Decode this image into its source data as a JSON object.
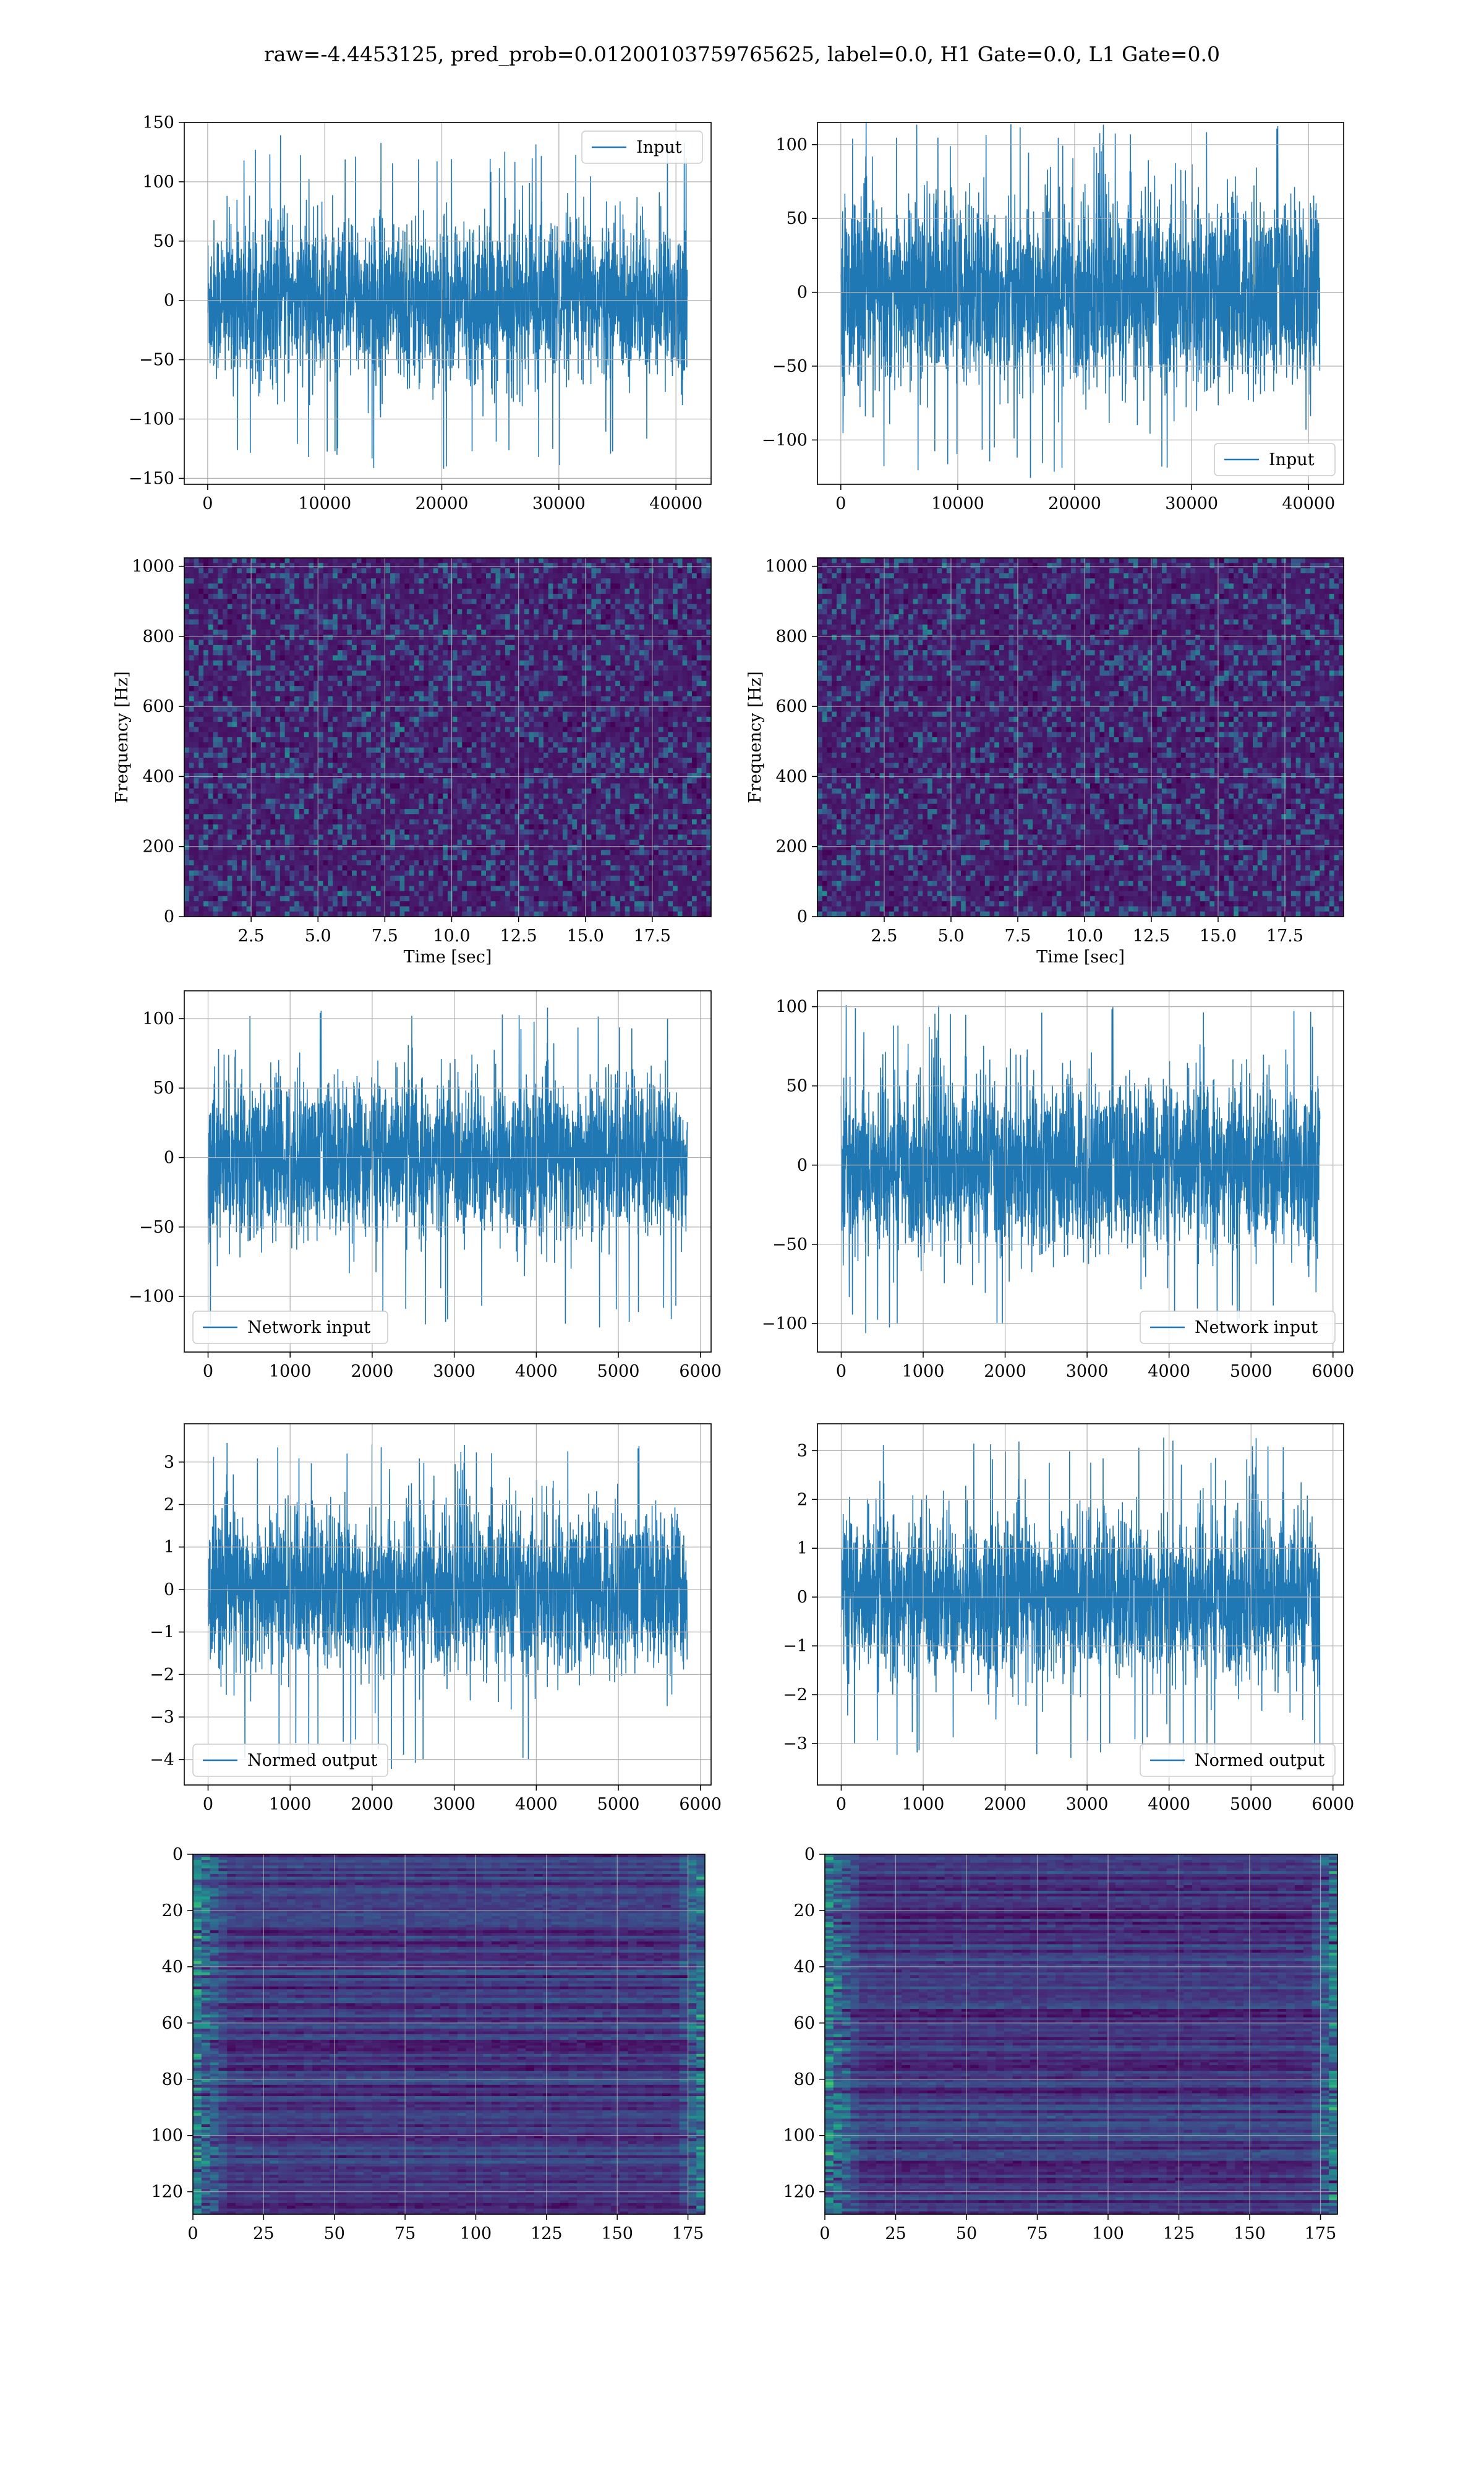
{
  "suptitle": "raw=-4.4453125, pred_prob=0.01200103759765625, label=0.0, H1 Gate=0.0, L1 Gate=0.0",
  "colors": {
    "line": "#1f77b4",
    "grid": "#b0b0b0",
    "viridis": [
      "#440154",
      "#482878",
      "#3e4989",
      "#31688e",
      "#26828e",
      "#1f9e89",
      "#35b779",
      "#6ece58",
      "#b5de2b",
      "#fde725"
    ]
  },
  "chart_data": [
    {
      "id": "h1-input",
      "type": "line",
      "series": [
        {
          "name": "Input",
          "n_samples": 40960,
          "envelope": [
            -100,
            100
          ],
          "extremes": [
            -142,
            140
          ]
        }
      ],
      "xlim": [
        -2000,
        43000
      ],
      "ylim": [
        -155,
        150
      ],
      "xticks": [
        0,
        10000,
        20000,
        30000,
        40000
      ],
      "yticks": [
        -150,
        -100,
        -50,
        0,
        50,
        100,
        150
      ],
      "legend": "upper right",
      "grid": true,
      "xlabel": "",
      "ylabel": ""
    },
    {
      "id": "l1-input",
      "type": "line",
      "series": [
        {
          "name": "Input",
          "n_samples": 40960,
          "envelope": [
            -95,
            95
          ],
          "extremes": [
            -128,
            115
          ]
        }
      ],
      "xlim": [
        -2000,
        43000
      ],
      "ylim": [
        -130,
        115
      ],
      "xticks": [
        0,
        10000,
        20000,
        30000,
        40000
      ],
      "yticks": [
        -100,
        -50,
        0,
        50,
        100
      ],
      "legend": "lower right",
      "grid": true,
      "xlabel": "",
      "ylabel": ""
    },
    {
      "id": "h1-spectrogram",
      "type": "heatmap",
      "xlim": [
        0,
        19.7
      ],
      "ylim": [
        0,
        1024
      ],
      "xticks": [
        2.5,
        5.0,
        7.5,
        10.0,
        12.5,
        15.0,
        17.5
      ],
      "yticks": [
        0,
        200,
        400,
        600,
        800,
        1000
      ],
      "xlabel": "Time [sec]",
      "ylabel": "Frequency [Hz]",
      "grid": true
    },
    {
      "id": "l1-spectrogram",
      "type": "heatmap",
      "xlim": [
        0,
        19.7
      ],
      "ylim": [
        0,
        1024
      ],
      "xticks": [
        2.5,
        5.0,
        7.5,
        10.0,
        12.5,
        15.0,
        17.5
      ],
      "yticks": [
        0,
        200,
        400,
        600,
        800,
        1000
      ],
      "xlabel": "Time [sec]",
      "ylabel": "Frequency [Hz]",
      "grid": true
    },
    {
      "id": "h1-network-input",
      "type": "line",
      "series": [
        {
          "name": "Network input",
          "n_samples": 5840,
          "envelope": [
            -85,
            85
          ],
          "extremes": [
            -130,
            108
          ]
        }
      ],
      "xlim": [
        -290,
        6130
      ],
      "ylim": [
        -140,
        120
      ],
      "xticks": [
        0,
        1000,
        2000,
        3000,
        4000,
        5000,
        6000
      ],
      "yticks": [
        -100,
        -50,
        0,
        50,
        100
      ],
      "legend": "lower left",
      "grid": true,
      "xlabel": "",
      "ylabel": ""
    },
    {
      "id": "l1-network-input",
      "type": "line",
      "series": [
        {
          "name": "Network input",
          "n_samples": 5840,
          "envelope": [
            -80,
            80
          ],
          "extremes": [
            -108,
            102
          ]
        }
      ],
      "xlim": [
        -290,
        6130
      ],
      "ylim": [
        -118,
        110
      ],
      "xticks": [
        0,
        1000,
        2000,
        3000,
        4000,
        5000,
        6000
      ],
      "yticks": [
        -100,
        -50,
        0,
        50,
        100
      ],
      "legend": "lower right",
      "grid": true,
      "xlabel": "",
      "ylabel": ""
    },
    {
      "id": "h1-normed-output",
      "type": "line",
      "series": [
        {
          "name": "Normed output",
          "n_samples": 5840,
          "envelope": [
            -2.8,
            2.8
          ],
          "extremes": [
            -4.3,
            3.45
          ]
        }
      ],
      "xlim": [
        -290,
        6130
      ],
      "ylim": [
        -4.6,
        3.9
      ],
      "xticks": [
        0,
        1000,
        2000,
        3000,
        4000,
        5000,
        6000
      ],
      "yticks": [
        -4,
        -3,
        -2,
        -1,
        0,
        1,
        2,
        3
      ],
      "legend": "lower left",
      "grid": true,
      "xlabel": "",
      "ylabel": ""
    },
    {
      "id": "l1-normed-output",
      "type": "line",
      "series": [
        {
          "name": "Normed output",
          "n_samples": 5840,
          "envelope": [
            -2.5,
            2.5
          ],
          "extremes": [
            -3.5,
            3.3
          ]
        }
      ],
      "xlim": [
        -290,
        6130
      ],
      "ylim": [
        -3.85,
        3.55
      ],
      "xticks": [
        0,
        1000,
        2000,
        3000,
        4000,
        5000,
        6000
      ],
      "yticks": [
        -3,
        -2,
        -1,
        0,
        1,
        2,
        3
      ],
      "legend": "lower right",
      "grid": true,
      "xlabel": "",
      "ylabel": ""
    },
    {
      "id": "h1-feature-map",
      "type": "heatmap",
      "rows": 128,
      "cols": 180,
      "xlim": [
        0,
        181
      ],
      "ylim": [
        128,
        0
      ],
      "xticks": [
        0,
        25,
        50,
        75,
        100,
        125,
        150,
        175
      ],
      "yticks": [
        0,
        20,
        40,
        60,
        80,
        100,
        120
      ],
      "grid": true,
      "xlabel": "",
      "ylabel": ""
    },
    {
      "id": "l1-feature-map",
      "type": "heatmap",
      "rows": 128,
      "cols": 180,
      "xlim": [
        0,
        181
      ],
      "ylim": [
        128,
        0
      ],
      "xticks": [
        0,
        25,
        50,
        75,
        100,
        125,
        150,
        175
      ],
      "yticks": [
        0,
        20,
        40,
        60,
        80,
        100,
        120
      ],
      "grid": true,
      "xlabel": "",
      "ylabel": ""
    }
  ]
}
